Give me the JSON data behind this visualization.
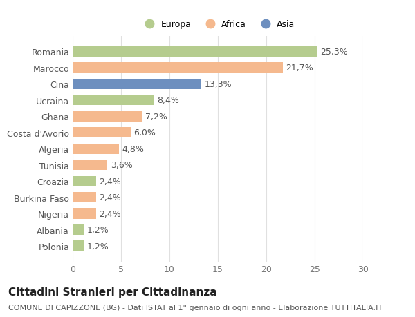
{
  "categories": [
    "Romania",
    "Marocco",
    "Cina",
    "Ucraina",
    "Ghana",
    "Costa d'Avorio",
    "Algeria",
    "Tunisia",
    "Croazia",
    "Burkina Faso",
    "Nigeria",
    "Albania",
    "Polonia"
  ],
  "values": [
    25.3,
    21.7,
    13.3,
    8.4,
    7.2,
    6.0,
    4.8,
    3.6,
    2.4,
    2.4,
    2.4,
    1.2,
    1.2
  ],
  "labels": [
    "25,3%",
    "21,7%",
    "13,3%",
    "8,4%",
    "7,2%",
    "6,0%",
    "4,8%",
    "3,6%",
    "2,4%",
    "2,4%",
    "2,4%",
    "1,2%",
    "1,2%"
  ],
  "continents": [
    "Europa",
    "Africa",
    "Asia",
    "Europa",
    "Africa",
    "Africa",
    "Africa",
    "Africa",
    "Europa",
    "Africa",
    "Africa",
    "Europa",
    "Europa"
  ],
  "colors": {
    "Europa": "#b5cc8e",
    "Africa": "#f5b98e",
    "Asia": "#6d8fbf"
  },
  "legend_labels": [
    "Europa",
    "Africa",
    "Asia"
  ],
  "xlim": [
    0,
    30
  ],
  "xticks": [
    0,
    5,
    10,
    15,
    20,
    25,
    30
  ],
  "title": "Cittadini Stranieri per Cittadinanza",
  "subtitle": "COMUNE DI CAPIZZONE (BG) - Dati ISTAT al 1° gennaio di ogni anno - Elaborazione TUTTITALIA.IT",
  "background_color": "#ffffff",
  "grid_color": "#e0e0e0",
  "bar_height": 0.65,
  "label_fontsize": 9,
  "tick_fontsize": 9,
  "title_fontsize": 11,
  "subtitle_fontsize": 8
}
